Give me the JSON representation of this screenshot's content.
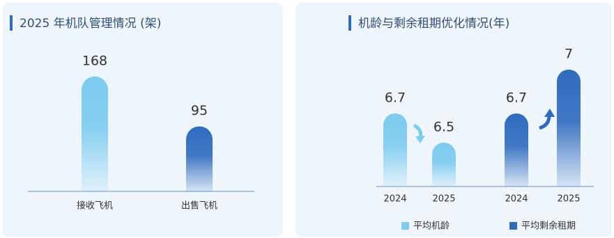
{
  "chart_data": [
    {
      "type": "bar",
      "title": "2025 年机队管理情况 (架)",
      "categories": [
        "接收飞机",
        "出售飞机"
      ],
      "values": [
        168,
        95
      ],
      "colors": [
        "#7ccbf0",
        "#2e6bbf"
      ],
      "ylim": [
        0,
        180
      ]
    },
    {
      "type": "bar",
      "title": "机龄与剩余租期优化情况(年)",
      "categories": [
        "2024",
        "2025"
      ],
      "series": [
        {
          "name": "平均机龄",
          "color": "#7ccbf0",
          "values": [
            6.7,
            6.5
          ]
        },
        {
          "name": "平均剩余租期",
          "color": "#2e6bbf",
          "values": [
            6.7,
            7
          ]
        }
      ],
      "ylim": [
        6.2,
        7.2
      ],
      "legend": "bottom"
    }
  ]
}
